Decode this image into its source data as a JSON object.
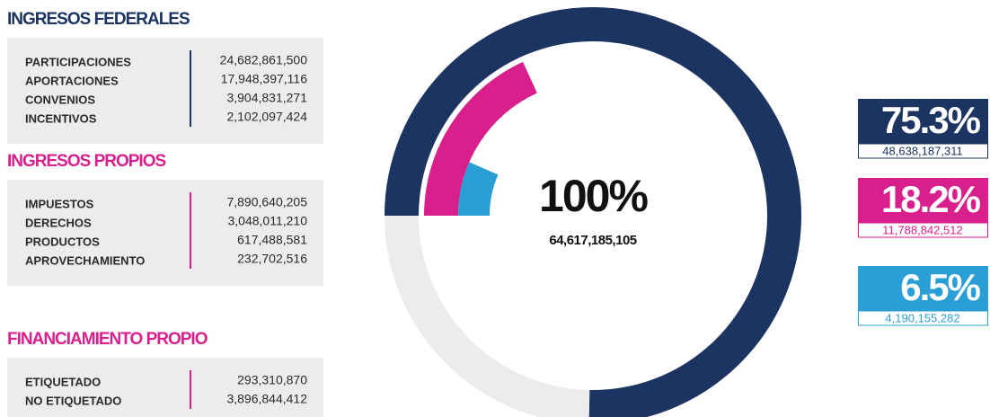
{
  "sections": [
    {
      "title": "INGRESOS FEDERALES",
      "color": "#1c3461",
      "rows": [
        {
          "label": "PARTICIPACIONES",
          "amount": "24,682,861,500"
        },
        {
          "label": "APORTACIONES",
          "amount": "17,948,397,116"
        },
        {
          "label": "CONVENIOS",
          "amount": "3,904,831,271"
        },
        {
          "label": "INCENTIVOS",
          "amount": "2,102,097,424"
        }
      ]
    },
    {
      "title": "INGRESOS PROPIOS",
      "color": "#d81f8c",
      "rows": [
        {
          "label": "IMPUESTOS",
          "amount": "7,890,640,205"
        },
        {
          "label": "DERECHOS",
          "amount": "3,048,011,210"
        },
        {
          "label": "PRODUCTOS",
          "amount": "617,488,581"
        },
        {
          "label": "APROVECHAMIENTO",
          "amount": "232,702,516"
        }
      ]
    },
    {
      "title": "FINANCIAMIENTO PROPIO",
      "color": "#d81f8c",
      "rows": [
        {
          "label": "ETIQUETADO",
          "amount": "293,310,870"
        },
        {
          "label": "NO ETIQUETADO",
          "amount": "3,896,844,412"
        }
      ]
    }
  ],
  "chart_data": {
    "type": "radial_bar",
    "center_label": "100%",
    "center_total": "64,617,185,105",
    "values": [
      75.3,
      18.2,
      6.5
    ],
    "value_labels": [
      "75.3%",
      "18.2%",
      "6.5%"
    ],
    "amounts": [
      "48,638,187,311",
      "11,788,842,512",
      "4,190,155,282"
    ],
    "colors": [
      "#1c3461",
      "#d81f8c",
      "#2a9fd6"
    ],
    "track_color": "#ececee"
  }
}
